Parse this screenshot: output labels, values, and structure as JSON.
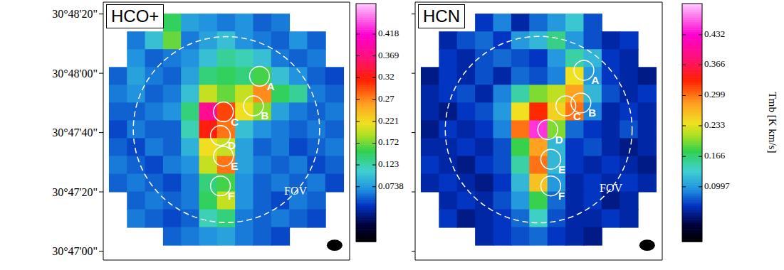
{
  "chart_data": [
    {
      "type": "heatmap",
      "title": "HCO+",
      "x": [
        -36,
        -30,
        -24,
        -18,
        -12,
        -6,
        0,
        6,
        12,
        18,
        24,
        30,
        36
      ],
      "y": [
        110897,
        110891,
        110885,
        110879,
        110873,
        110867,
        110861,
        110855,
        110849,
        110843,
        110837,
        110831,
        110825
      ],
      "cells": [
        [
          null,
          null,
          null,
          0.15,
          0.08,
          0.07,
          0.06,
          0.07,
          0.05,
          0.06,
          null,
          null,
          null
        ],
        [
          null,
          0.06,
          0.1,
          0.17,
          0.06,
          0.08,
          0.1,
          0.07,
          0.06,
          0.05,
          0.07,
          0.05,
          null
        ],
        [
          null,
          0.07,
          0.05,
          0.06,
          0.07,
          0.1,
          0.13,
          0.12,
          0.1,
          0.06,
          0.05,
          0.06,
          null
        ],
        [
          0.05,
          0.08,
          0.06,
          0.05,
          0.08,
          0.14,
          0.15,
          0.14,
          0.16,
          0.1,
          0.07,
          0.05,
          0.04
        ],
        [
          0.06,
          0.07,
          0.05,
          0.06,
          0.1,
          0.2,
          0.17,
          0.2,
          0.27,
          0.15,
          0.13,
          0.06,
          0.05
        ],
        [
          0.05,
          0.05,
          0.06,
          0.07,
          0.14,
          0.38,
          0.3,
          0.22,
          0.18,
          0.08,
          0.06,
          0.05,
          0.06
        ],
        [
          0.04,
          0.06,
          0.05,
          0.05,
          0.12,
          0.32,
          0.28,
          0.1,
          0.07,
          0.06,
          0.05,
          0.06,
          0.05
        ],
        [
          0.05,
          0.04,
          0.06,
          0.05,
          0.09,
          0.22,
          0.2,
          0.08,
          0.05,
          0.06,
          0.04,
          0.05,
          0.06
        ],
        [
          0.06,
          0.05,
          0.04,
          0.06,
          0.07,
          0.2,
          0.28,
          0.08,
          0.06,
          0.05,
          0.06,
          0.04,
          0.05
        ],
        [
          0.05,
          0.06,
          0.05,
          0.04,
          0.06,
          0.14,
          0.16,
          0.07,
          0.05,
          0.06,
          0.05,
          0.06,
          0.04
        ],
        [
          null,
          0.05,
          0.06,
          0.05,
          0.06,
          0.15,
          0.2,
          0.07,
          0.05,
          0.04,
          0.06,
          0.05,
          null
        ],
        [
          null,
          0.06,
          0.05,
          0.04,
          0.05,
          0.12,
          0.14,
          0.06,
          0.05,
          0.06,
          0.05,
          0.04,
          null
        ],
        [
          null,
          null,
          null,
          0.05,
          0.06,
          0.07,
          0.08,
          0.06,
          0.05,
          0.04,
          null,
          null,
          null
        ]
      ],
      "xlim": [
        -41,
        41
      ],
      "ylim": [
        110817,
        110904
      ],
      "yticks": [
        {
          "value": 110820,
          "label": "30°47'00\""
        },
        {
          "value": 110840,
          "label": "30°47'20\""
        },
        {
          "value": 110860,
          "label": "30°47'40\""
        },
        {
          "value": 110880,
          "label": "30°48'00\""
        },
        {
          "value": 110900,
          "label": "30°48'20\""
        }
      ],
      "tick_labels": "y",
      "colorbar": {
        "range": [
          -0.05,
          0.487
        ],
        "ticks": [
          0.0738,
          0.123,
          0.172,
          0.221,
          0.27,
          0.32,
          0.369,
          0.418
        ]
      },
      "source_radius": 3.3,
      "sources": [
        {
          "label": "A",
          "x": 11,
          "y": 110879
        },
        {
          "label": "B",
          "x": 9,
          "y": 110869
        },
        {
          "label": "C",
          "x": -1,
          "y": 110867
        },
        {
          "label": "D",
          "x": -2,
          "y": 110859
        },
        {
          "label": "E",
          "x": -1,
          "y": 110852
        },
        {
          "label": "F",
          "x": -2,
          "y": 110842
        }
      ],
      "fov": {
        "label": "FOV",
        "x": 0,
        "y": 110861,
        "radius": 31,
        "label_x": 23,
        "label_y": 110840
      },
      "beam": {
        "x": 36,
        "y": 110822,
        "major": 5.2,
        "minor": 3.8
      }
    },
    {
      "type": "heatmap",
      "title": "HCN",
      "x": [
        -36,
        -30,
        -24,
        -18,
        -12,
        -6,
        0,
        6,
        12,
        18,
        24,
        30,
        36
      ],
      "y": [
        110897,
        110891,
        110885,
        110879,
        110873,
        110867,
        110861,
        110855,
        110849,
        110843,
        110837,
        110831,
        110825
      ],
      "cells": [
        [
          null,
          null,
          null,
          0.06,
          0.09,
          0.05,
          0.08,
          0.1,
          0.13,
          0.07,
          null,
          null,
          null
        ],
        [
          null,
          0.05,
          0.07,
          0.08,
          0.06,
          0.1,
          0.12,
          0.16,
          0.1,
          0.07,
          0.05,
          0.06,
          null
        ],
        [
          null,
          0.06,
          0.05,
          0.07,
          0.08,
          0.07,
          0.06,
          0.1,
          0.15,
          0.12,
          0.06,
          0.05,
          null
        ],
        [
          0.04,
          0.06,
          0.05,
          0.07,
          0.05,
          0.08,
          0.07,
          0.09,
          0.24,
          0.1,
          0.06,
          0.05,
          0.04
        ],
        [
          0.05,
          0.06,
          0.07,
          0.05,
          0.09,
          0.15,
          0.2,
          0.22,
          0.28,
          0.12,
          0.07,
          0.05,
          0.06
        ],
        [
          0.05,
          0.04,
          0.06,
          0.07,
          0.1,
          0.24,
          0.33,
          0.25,
          0.3,
          0.09,
          0.05,
          0.06,
          0.05
        ],
        [
          0.04,
          0.06,
          0.05,
          0.06,
          0.09,
          0.3,
          0.45,
          0.2,
          0.08,
          0.06,
          0.05,
          0.07,
          0.05
        ],
        [
          0.05,
          0.05,
          0.06,
          0.05,
          0.07,
          0.18,
          0.28,
          0.12,
          0.06,
          0.07,
          0.05,
          0.04,
          0.05
        ],
        [
          0.06,
          0.05,
          0.04,
          0.06,
          0.07,
          0.15,
          0.3,
          0.12,
          0.06,
          0.05,
          0.06,
          0.05,
          0.04
        ],
        [
          0.05,
          0.06,
          0.05,
          0.04,
          0.06,
          0.12,
          0.26,
          0.1,
          0.05,
          0.06,
          0.05,
          0.06,
          0.05
        ],
        [
          null,
          0.05,
          0.06,
          0.05,
          0.07,
          0.1,
          0.18,
          0.08,
          0.05,
          0.06,
          0.04,
          0.05,
          null
        ],
        [
          null,
          0.06,
          0.04,
          0.05,
          0.06,
          0.08,
          0.14,
          0.07,
          0.05,
          0.05,
          0.06,
          0.05,
          null
        ],
        [
          null,
          null,
          null,
          0.05,
          0.06,
          0.07,
          0.08,
          0.06,
          0.05,
          0.04,
          null,
          null,
          null
        ]
      ],
      "xlim": [
        -41,
        41
      ],
      "ylim": [
        110817,
        110904
      ],
      "yticks": [
        110820,
        110840,
        110860,
        110880,
        110900
      ],
      "tick_labels": false,
      "colorbar": {
        "range": [
          -0.02,
          0.5
        ],
        "ticks": [
          0.0997,
          0.166,
          0.233,
          0.299,
          0.366,
          0.432
        ],
        "label": "Tmb [K km/s]"
      },
      "source_radius": 3.3,
      "sources": [
        {
          "label": "A",
          "x": 15,
          "y": 110881
        },
        {
          "label": "B",
          "x": 14,
          "y": 110870
        },
        {
          "label": "C",
          "x": 9,
          "y": 110869
        },
        {
          "label": "D",
          "x": 3,
          "y": 110861
        },
        {
          "label": "E",
          "x": 4,
          "y": 110851
        },
        {
          "label": "F",
          "x": 4,
          "y": 110842
        }
      ],
      "fov": {
        "label": "FOV",
        "x": 0,
        "y": 110861,
        "radius": 31,
        "label_x": 24,
        "label_y": 110841
      },
      "beam": {
        "x": 36,
        "y": 110822,
        "major": 5.2,
        "minor": 3.8
      }
    }
  ]
}
